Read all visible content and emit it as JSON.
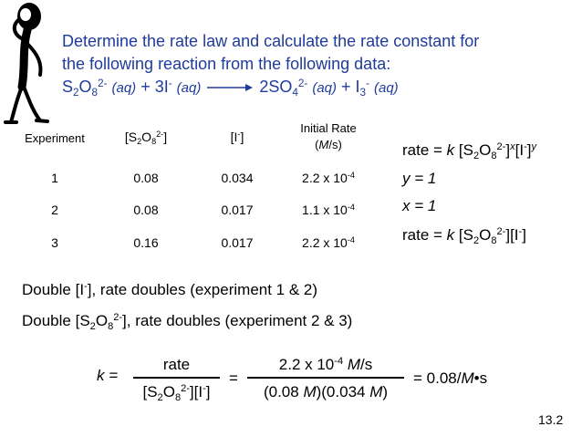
{
  "title": {
    "line1": "Determine the rate law and calculate the rate constant for",
    "line2": "the following reaction from the following data:",
    "reaction": {
      "r1_main": "S",
      "r1_s1": "2",
      "r1_o": "O",
      "r1_s2": "8",
      "r1_charge": "2-",
      "r1_state": "(aq)",
      "plus1": "+ 3I",
      "r2_charge": "-",
      "r2_state": "(aq)",
      "p1_main": "2SO",
      "p1_sub": "4",
      "p1_charge": "2-",
      "p1_state": "(aq)",
      "plus2": "+ I",
      "p2_sub": "3",
      "p2_charge": "-",
      "p2_state": "(aq)"
    }
  },
  "table": {
    "headers": {
      "experiment": "Experiment",
      "s2o8": {
        "open": "[S",
        "s1": "2",
        "o": "O",
        "s2": "8",
        "charge": "2-",
        "close": "]"
      },
      "iodide": {
        "open": "[I",
        "charge": "-",
        "close": "]"
      },
      "rate_line1": "Initial Rate",
      "rate_line2_open": "(",
      "rate_line2_unit": "M",
      "rate_line2_close": "/s)"
    },
    "rows": [
      {
        "exp": "1",
        "s2o8": "0.08",
        "iodide": "0.034",
        "rate_base": "2.2 x 10",
        "rate_exp": "-4"
      },
      {
        "exp": "2",
        "s2o8": "0.08",
        "iodide": "0.017",
        "rate_base": "1.1 x 10",
        "rate_exp": "-4"
      },
      {
        "exp": "3",
        "s2o8": "0.16",
        "iodide": "0.017",
        "rate_base": "2.2 x 10",
        "rate_exp": "-4"
      }
    ]
  },
  "rate_law_general": {
    "pre": "rate = ",
    "k": "k",
    "open": " [S",
    "s1": "2",
    "o": "O",
    "s2": "8",
    "charge": "2-",
    "mid": "]",
    "x": "x",
    "mid2": "[I",
    "charge2": "-",
    "close": "]",
    "y": "y"
  },
  "y_result": "y = 1",
  "x_result": "x = 1",
  "rate_law_final": {
    "pre": "rate = ",
    "k": "k",
    "open": " [S",
    "s1": "2",
    "o": "O",
    "s2": "8",
    "charge": "2-",
    "mid": "][I",
    "charge2": "-",
    "close": "]"
  },
  "observations": {
    "iodide": {
      "open": "Double [I",
      "charge": "-",
      "rest": "], rate doubles (experiment 1 & 2)"
    },
    "s2o8": {
      "open": "Double [S",
      "s1": "2",
      "o": "O",
      "s2": "8",
      "charge": "2-",
      "rest": "], rate doubles (experiment 2 & 3)"
    }
  },
  "k_calc": {
    "k_label": "k =",
    "frac1_num": "rate",
    "frac1_den": {
      "open": "[S",
      "s1": "2",
      "o": "O",
      "s2": "8",
      "charge": "2-",
      "mid": "][I",
      "charge2": "-",
      "close": "]"
    },
    "equals": "=",
    "frac2_num": {
      "base": "2.2 x 10",
      "exp": "-4",
      "unit": " M",
      "rest": "/s"
    },
    "frac2_den": {
      "open": "(0.08 ",
      "m1": "M",
      "mid": ")(0.034 ",
      "m2": "M",
      "close": ")"
    },
    "result": {
      "pre": "= 0.08/",
      "m": "M",
      "post": "•s"
    }
  },
  "slide_number": "13.2"
}
